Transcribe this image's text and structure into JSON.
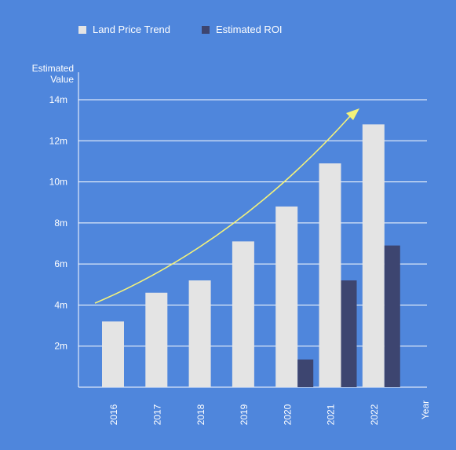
{
  "colors": {
    "background": "#4f86dc",
    "gridline": "#ffffff",
    "land": "#e4e4e4",
    "roi": "#3d4570",
    "arrow": "#f4f27a",
    "text": "#ffffff"
  },
  "chart_data": {
    "type": "bar",
    "ylabel": "Estimated\nValue",
    "xlabel": "Year",
    "categories": [
      "2016",
      "2017",
      "2018",
      "2019",
      "2020",
      "2021",
      "2022"
    ],
    "yticks": [
      "2m",
      "4m",
      "6m",
      "8m",
      "10m",
      "12m",
      "14m"
    ],
    "ylim": [
      0,
      14
    ],
    "grid": true,
    "legend_position": "top",
    "series": [
      {
        "name": "Land Price Trend",
        "values": [
          3.2,
          4.6,
          5.2,
          7.1,
          8.8,
          10.9,
          12.8
        ]
      },
      {
        "name": "Estimated ROI",
        "values": [
          0,
          0,
          0,
          0,
          1.35,
          5.2,
          6.9
        ]
      }
    ],
    "trend_arrow": true
  }
}
